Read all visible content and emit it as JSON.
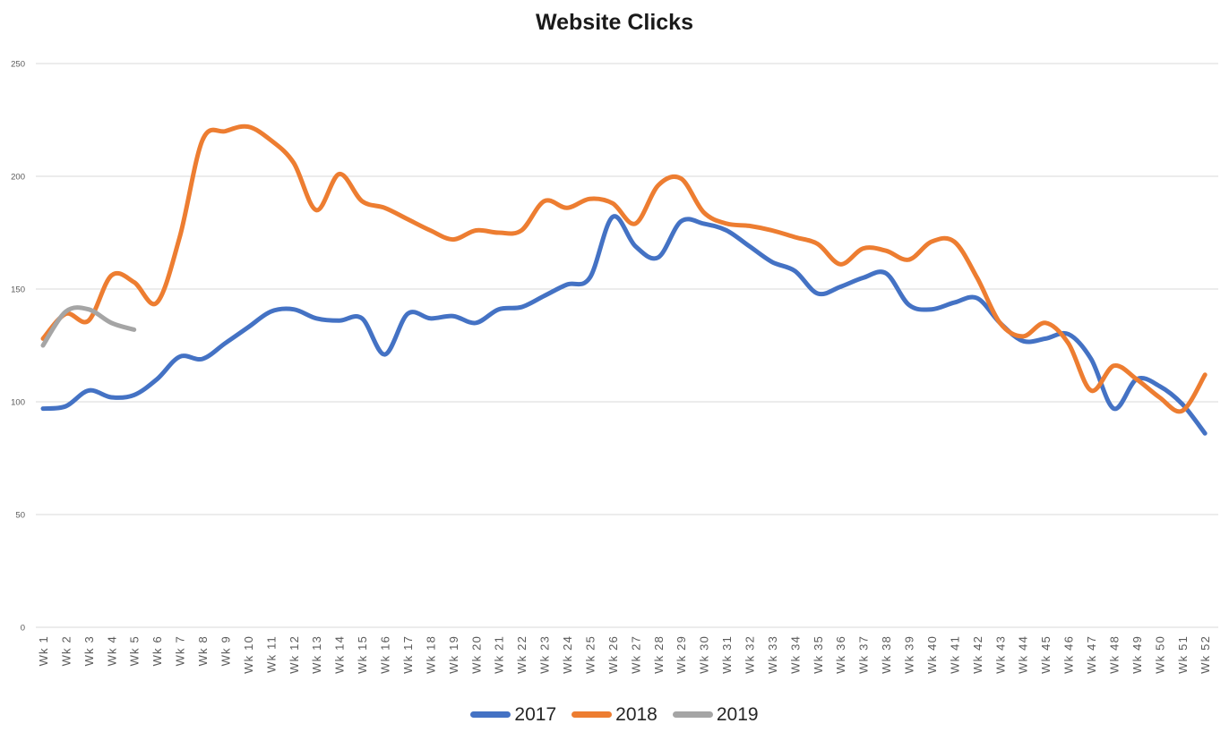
{
  "title": "Website Clicks",
  "chart_data": {
    "type": "line",
    "title": "Website Clicks",
    "smooth": true,
    "grid": "horizontal",
    "legend_position": "bottom",
    "ylim": [
      0,
      250
    ],
    "yticks": [
      0,
      50,
      100,
      150,
      200,
      250
    ],
    "ytick_labels": [
      "0",
      "50",
      "100",
      "150",
      "200",
      "250"
    ],
    "x_categories": [
      "Wk 1",
      "Wk 2",
      "Wk 3",
      "Wk 4",
      "Wk 5",
      "Wk 6",
      "Wk 7",
      "Wk 8",
      "Wk 9",
      "Wk 10",
      "Wk 11",
      "Wk 12",
      "Wk 13",
      "Wk 14",
      "Wk 15",
      "Wk 16",
      "Wk 17",
      "Wk 18",
      "Wk 19",
      "Wk 20",
      "Wk 21",
      "Wk 22",
      "Wk 23",
      "Wk 24",
      "Wk 25",
      "Wk 26",
      "Wk 27",
      "Wk 28",
      "Wk 29",
      "Wk 30",
      "Wk 31",
      "Wk 32",
      "Wk 33",
      "Wk 34",
      "Wk 35",
      "Wk 36",
      "Wk 37",
      "Wk 38",
      "Wk 39",
      "Wk 40",
      "Wk 41",
      "Wk 42",
      "Wk 43",
      "Wk 44",
      "Wk 45",
      "Wk 46",
      "Wk 47",
      "Wk 48",
      "Wk 49",
      "Wk 50",
      "Wk 51",
      "Wk 52"
    ],
    "series": [
      {
        "name": "2017",
        "color": "#4472C4",
        "values": [
          97,
          98,
          105,
          102,
          103,
          110,
          120,
          119,
          126,
          133,
          140,
          141,
          137,
          136,
          137,
          121,
          139,
          137,
          138,
          135,
          141,
          142,
          147,
          152,
          155,
          182,
          169,
          164,
          180,
          179,
          176,
          169,
          162,
          158,
          148,
          151,
          155,
          157,
          143,
          141,
          144,
          146,
          135,
          127,
          128,
          130,
          119,
          97,
          110,
          107,
          99,
          86
        ]
      },
      {
        "name": "2018",
        "color": "#ED7D31",
        "values": [
          128,
          139,
          136,
          156,
          153,
          144,
          173,
          216,
          220,
          222,
          216,
          206,
          185,
          201,
          189,
          186,
          181,
          176,
          172,
          176,
          175,
          176,
          189,
          186,
          190,
          188,
          179,
          196,
          199,
          184,
          179,
          178,
          176,
          173,
          170,
          161,
          168,
          167,
          163,
          171,
          171,
          155,
          135,
          129,
          135,
          126,
          105,
          116,
          110,
          102,
          96,
          112
        ]
      },
      {
        "name": "2019",
        "color": "#A5A5A5",
        "values": [
          125,
          140,
          141,
          135,
          132
        ]
      }
    ]
  },
  "legend": {
    "items": [
      {
        "label": "2017",
        "color": "#4472C4"
      },
      {
        "label": "2018",
        "color": "#ED7D31"
      },
      {
        "label": "2019",
        "color": "#A5A5A5"
      }
    ]
  },
  "style": {
    "background": "#FFFFFF",
    "gridline_color": "#D9D9D9",
    "axis_label_color": "#595959",
    "title_color": "#1A1A1A",
    "legend_text_color": "#262626"
  }
}
